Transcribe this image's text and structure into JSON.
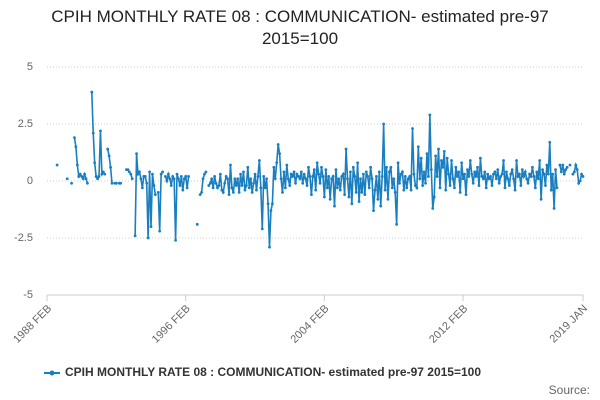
{
  "chart_data": {
    "type": "line",
    "title": "CPIH MONTHLY RATE 08 : COMMUNICATION- estimated pre-97 2015=100",
    "source": "Source:",
    "categories": [
      "1988 FEB",
      null,
      null,
      null,
      null,
      null,
      null,
      null,
      null,
      null,
      null,
      null,
      null,
      null,
      null,
      null,
      null,
      null,
      null,
      null,
      null,
      null,
      null,
      null,
      null,
      null,
      null,
      null,
      null,
      null,
      null,
      null,
      null,
      null,
      null,
      null,
      null,
      null,
      null,
      null,
      null,
      null,
      null,
      null,
      null,
      null,
      null,
      null,
      null,
      null,
      null,
      null,
      null,
      null,
      null,
      null,
      null,
      null,
      null,
      null,
      null,
      null,
      null,
      null,
      null,
      null,
      null,
      null,
      null,
      null,
      null,
      null,
      null,
      null,
      null,
      null,
      null,
      null,
      null,
      null,
      null,
      null,
      null,
      null,
      null,
      null,
      null,
      null,
      null,
      null,
      null,
      null,
      null,
      null,
      null,
      null,
      "1996 FEB",
      null,
      null,
      null,
      null,
      null,
      null,
      null,
      null,
      null,
      null,
      null,
      null,
      null,
      null,
      null,
      null,
      null,
      null,
      null,
      null,
      null,
      null,
      null,
      null,
      null,
      null,
      null,
      null,
      null,
      null,
      null,
      null,
      null,
      null,
      null,
      null,
      null,
      null,
      null,
      null,
      null,
      null,
      null,
      null,
      null,
      null,
      null,
      null,
      null,
      null,
      null,
      null,
      null,
      null,
      null,
      null,
      null,
      null,
      null,
      null,
      null,
      null,
      null,
      null,
      null,
      null,
      null,
      null,
      null,
      null,
      null,
      null,
      null,
      null,
      null,
      null,
      null,
      null,
      null,
      null,
      null,
      null,
      null,
      null,
      null,
      null,
      null,
      null,
      null,
      null,
      null,
      null,
      null,
      null,
      null,
      "2004 FEB",
      null,
      null,
      null,
      null,
      null,
      null,
      null,
      null,
      null,
      null,
      null,
      null,
      null,
      null,
      null,
      null,
      null,
      null,
      null,
      null,
      null,
      null,
      null,
      null,
      null,
      null,
      null,
      null,
      null,
      null,
      null,
      null,
      null,
      null,
      null,
      null,
      null,
      null,
      null,
      null,
      null,
      null,
      null,
      null,
      null,
      null,
      null,
      null,
      null,
      null,
      null,
      null,
      null,
      null,
      null,
      null,
      null,
      null,
      null,
      null,
      null,
      null,
      null,
      null,
      null,
      null,
      null,
      null,
      null,
      null,
      null,
      null,
      null,
      null,
      null,
      null,
      null,
      null,
      null,
      null,
      null,
      null,
      null,
      null,
      null,
      null,
      null,
      null,
      null,
      null,
      null,
      null,
      null,
      null,
      null,
      "2012 FEB",
      null,
      null,
      null,
      null,
      null,
      null,
      null,
      null,
      null,
      null,
      null,
      null,
      null,
      null,
      null,
      null,
      null,
      null,
      null,
      null,
      null,
      null,
      null,
      null,
      null,
      null,
      null,
      null,
      null,
      null,
      null,
      null,
      null,
      null,
      null,
      null,
      null,
      null,
      null,
      null,
      null,
      null,
      null,
      null,
      null,
      null,
      null,
      null,
      null,
      null,
      null,
      null,
      null,
      null,
      null,
      null,
      null,
      null,
      null,
      null,
      null,
      null,
      null,
      null,
      null,
      null,
      null,
      null,
      null,
      null,
      null,
      null,
      null,
      null,
      null,
      null,
      null,
      null,
      null,
      null,
      null,
      null,
      "2019 JAN"
    ],
    "series": [
      {
        "name": "CPIH MONTHLY RATE 08 : COMMUNICATION- estimated pre-97 2015=100",
        "color": "#1a7fc1",
        "values": [
          null,
          null,
          null,
          null,
          null,
          null,
          null,
          0.7,
          null,
          null,
          null,
          null,
          null,
          null,
          0.1,
          null,
          null,
          -0.1,
          null,
          1.9,
          1.5,
          0.7,
          0.2,
          0.3,
          0.2,
          0.1,
          0.3,
          0.1,
          -0.1,
          null,
          null,
          3.9,
          2.1,
          0.8,
          0.2,
          0.1,
          0.2,
          2.2,
          0.3,
          0.4,
          0.3,
          null,
          1.4,
          1.1,
          0.6,
          -0.1,
          null,
          -0.1,
          -0.1,
          null,
          -0.1,
          -0.1,
          null,
          null,
          null,
          0.5,
          0.5,
          0.4,
          0.3,
          0.1,
          null,
          -2.4,
          1.2,
          0.3,
          0.4,
          0.1,
          -0.3,
          0.2,
          0.2,
          -0.1,
          -2.5,
          0.4,
          -2.0,
          0.3,
          -0.2,
          -0.6,
          null,
          -0.5,
          -2.2,
          0.3,
          0.4,
          null,
          0.2,
          0,
          0.3,
          0.1,
          -0.2,
          0.2,
          0.1,
          -2.6,
          0.3,
          0.1,
          -0.2,
          0.2,
          -0.4,
          0.1,
          0.2,
          -0.3,
          0.2,
          null,
          null,
          null,
          null,
          null,
          -1.9,
          null,
          -0.6,
          -0.5,
          0.1,
          0.3,
          0.4,
          null,
          -0.2,
          -0.1,
          0.1,
          -0.3,
          0.2,
          -0.1,
          -0.3,
          -0.2,
          0.3,
          -0.4,
          -0.5,
          -0.1,
          0.2,
          0.1,
          -0.6,
          0.7,
          -0.3,
          -0.5,
          0.1,
          -0.2,
          0.1,
          -0.5,
          0.3,
          -0.2,
          0.4,
          -0.4,
          -0.2,
          0.6,
          -0.3,
          0.1,
          -0.5,
          -0.1,
          0.3,
          -0.4,
          0.2,
          0.9,
          -0.3,
          -2.1,
          0.2,
          -0.3,
          0.1,
          -1.0,
          -2.9,
          -1.3,
          -1.0,
          0.6,
          0.1,
          0.8,
          1.6,
          1.2,
          0.1,
          -0.5,
          0.4,
          -0.3,
          0.7,
          0.1,
          -0.2,
          0.3,
          0.2,
          0.4,
          -0.1,
          0.3,
          0.2,
          0.1,
          0.4,
          -0.1,
          0.3,
          0.1,
          -0.2,
          0.6,
          0.2,
          -0.6,
          0.2,
          0.5,
          -0.4,
          0.8,
          0.3,
          -0.1,
          0.6,
          0.2,
          -0.7,
          0.5,
          -0.3,
          0.2,
          -0.8,
          0.1,
          0.2,
          -1.1,
          0.5,
          -0.3,
          0.1,
          -0.4,
          0.2,
          0.3,
          -0.6,
          1.4,
          0.1,
          -0.7,
          0.4,
          -1.0,
          0.6,
          0.2,
          -0.5,
          0.8,
          -0.9,
          0.1,
          -0.5,
          0.3,
          -0.6,
          0.4,
          0.2,
          -0.3,
          0.6,
          0.1,
          -1.3,
          -0.4,
          0.2,
          -0.8,
          0.4,
          -1.1,
          0.2,
          2.5,
          -0.4,
          0.6,
          -0.8,
          0.4,
          0.6,
          -0.3,
          0.1,
          -0.5,
          -1.9,
          0.8,
          -0.1,
          0.3,
          0.4,
          -0.4,
          0.2,
          -0.3,
          0.1,
          0.2,
          -0.4,
          2.3,
          0.3,
          -0.2,
          -0.3,
          1.5,
          0.1,
          1.0,
          -0.2,
          0.4,
          -0.1,
          1.2,
          0.2,
          2.9,
          0.5,
          -1.2,
          -0.7,
          1.1,
          0.2,
          1.4,
          -0.3,
          0.9,
          0.6,
          1.3,
          -0.4,
          1.0,
          0.3,
          -0.2,
          0.9,
          0.1,
          -0.3,
          0.6,
          0.2,
          0.4,
          -0.5,
          0.8,
          0.1,
          0.3,
          -0.6,
          0.5,
          0.2,
          0.9,
          0.3,
          -0.1,
          0.4,
          0.2,
          0.6,
          -0.2,
          1.0,
          0.2,
          0.1,
          0.4,
          -0.3,
          0.3,
          0.1,
          0.2,
          -0.2,
          0.3,
          0.4,
          0.1,
          0.5,
          -0.1,
          0.2,
          0.3,
          0.9,
          -0.3,
          0.4,
          0.1,
          -0.2,
          0.3,
          0.5,
          0.1,
          -0.4,
          0.9,
          0.2,
          0.3,
          -0.2,
          0.5,
          0.2,
          0.4,
          0.1,
          -0.1,
          0.3,
          0.2,
          0.6,
          0.2,
          -0.3,
          0.4,
          0.1,
          0.9,
          -0.8,
          0.5,
          0.3,
          -0.2,
          0.7,
          0.3,
          1.7,
          -0.4,
          0.3,
          -1.2,
          0.5,
          -0.3,
          null,
          0.7,
          0.4,
          0.7,
          0.3,
          0.5,
          0.6,
          null,
          0.7,
          null,
          0.3,
          0.4,
          0.7,
          0.5,
          -0.1,
          0,
          0.3,
          0.2
        ]
      }
    ],
    "ylim": [
      -5,
      5
    ],
    "yticks": [
      -5,
      {
        "value": -2.5,
        "label": "-2.5"
      },
      0,
      2.5,
      5
    ],
    "grid": true
  }
}
